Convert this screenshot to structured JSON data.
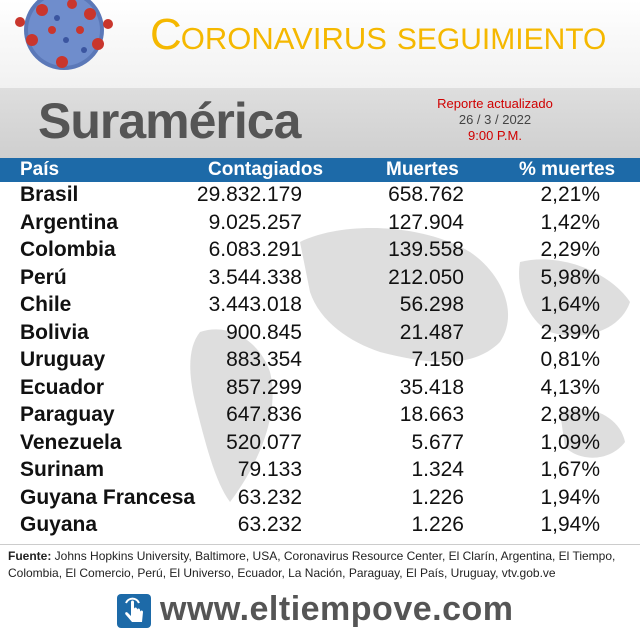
{
  "header": {
    "title_c": "C",
    "title_rest": "ORONAVIRUS",
    "title_seg": "SEGUIMIENTO",
    "region": "Suramérica",
    "report_label": "Reporte actualizado",
    "report_date": "26 / 3 / 2022",
    "report_time": "9:00 P.M."
  },
  "table": {
    "headers": [
      "País",
      "Contagiados",
      "Muertes",
      "% muertes"
    ],
    "rows": [
      [
        "Brasil",
        "29.832.179",
        "658.762",
        "2,21%"
      ],
      [
        "Argentina",
        "9.025.257",
        "127.904",
        "1,42%"
      ],
      [
        "Colombia",
        "6.083.291",
        "139.558",
        "2,29%"
      ],
      [
        "Perú",
        "3.544.338",
        "212.050",
        "5,98%"
      ],
      [
        "Chile",
        "3.443.018",
        "56.298",
        "1,64%"
      ],
      [
        "Bolivia",
        "900.845",
        "21.487",
        "2,39%"
      ],
      [
        "Uruguay",
        "883.354",
        "7.150",
        "0,81%"
      ],
      [
        "Ecuador",
        "857.299",
        "35.418",
        "4,13%"
      ],
      [
        "Paraguay",
        "647.836",
        "18.663",
        "2,88%"
      ],
      [
        "Venezuela",
        "520.077",
        "5.677",
        "1,09%"
      ],
      [
        "Surinam",
        "79.133",
        "1.324",
        "1,67%"
      ],
      [
        "Guyana Francesa",
        "63.232",
        "1.226",
        "1,94%"
      ],
      [
        "Guyana",
        "63.232",
        "1.226",
        "1,94%"
      ]
    ]
  },
  "source": {
    "label": "Fuente:",
    "text": " Johns Hopkins University, Baltimore, USA, Coronavirus Resource Center,  El Clarín, Argentina, El Tiempo, Colombia, El Comercio, Perú, El Universo, Ecuador, La Nación, Paraguay, El País, Uruguay, vtv.gob.ve"
  },
  "footer": {
    "website": "www.eltiempove.com"
  },
  "colors": {
    "accent_yellow": "#f5b800",
    "header_blue": "#1d6aa8",
    "report_red": "#d00000"
  },
  "icons": {
    "virus": "coronavirus-illustration",
    "web": "touch-hand-icon"
  }
}
